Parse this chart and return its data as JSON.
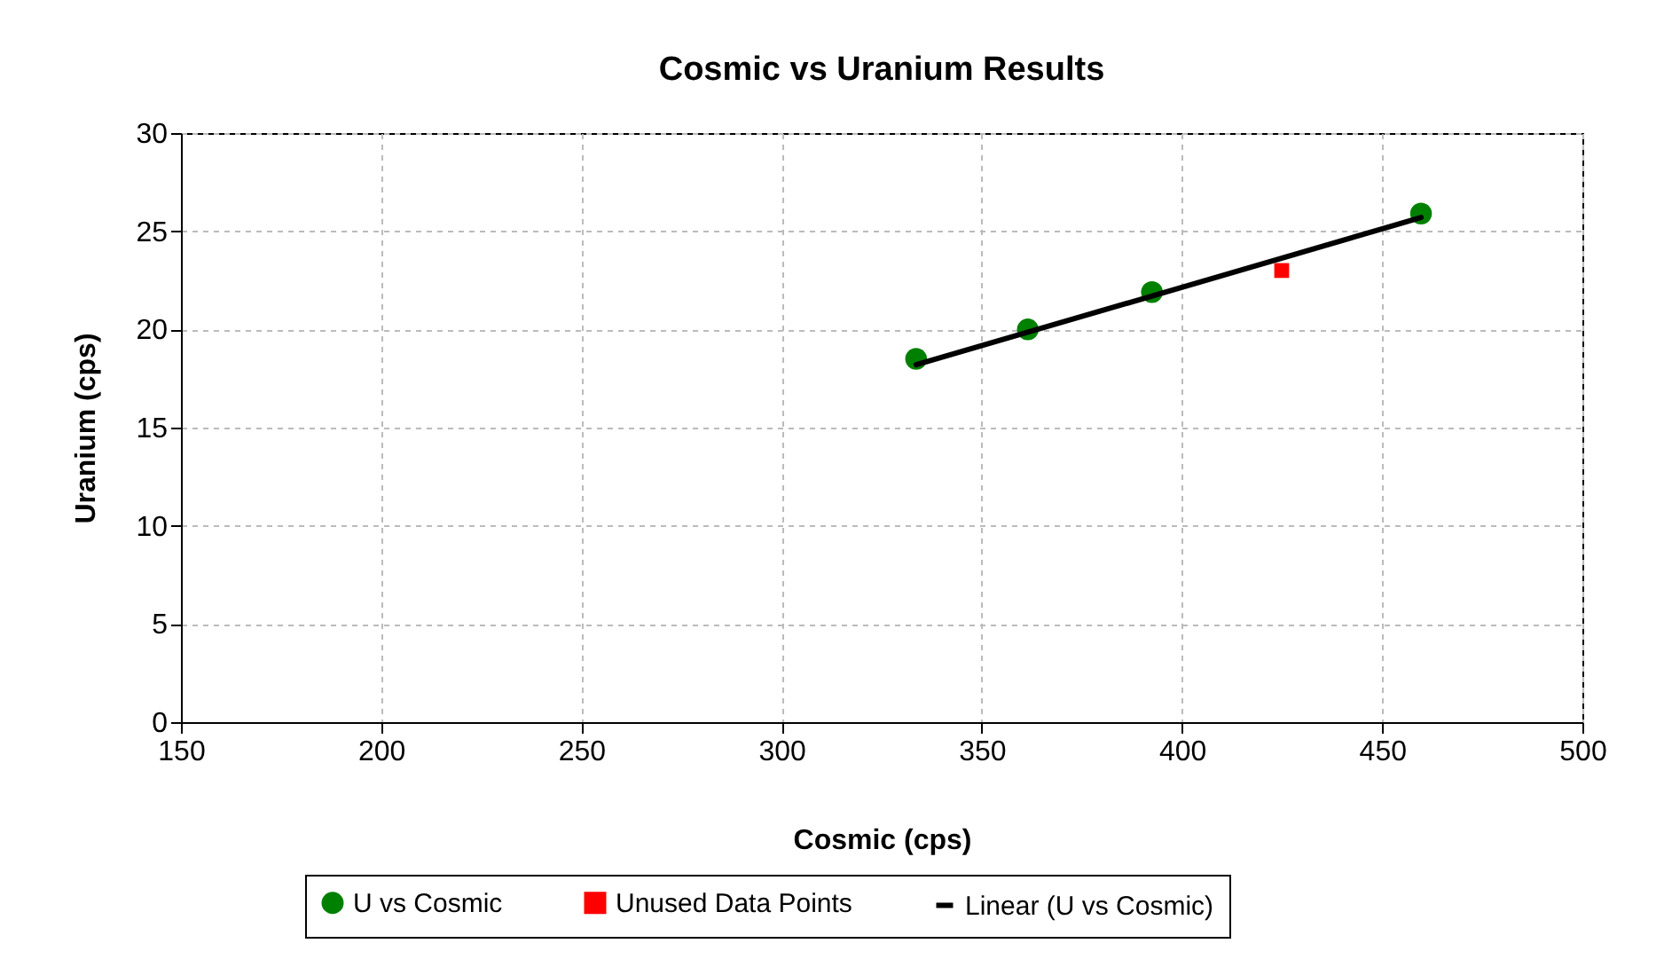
{
  "chart_data": {
    "type": "scatter",
    "title": "Cosmic vs Uranium Results",
    "xlabel": "Cosmic (cps)",
    "ylabel": "Uranium (cps)",
    "series": [
      {
        "name": "U vs Cosmic",
        "marker": "circle",
        "color": "#008000",
        "x": [
          333.6,
          361.5,
          392.5,
          459.7
        ],
        "values": [
          18.5,
          20.0,
          21.9,
          25.9
        ]
      },
      {
        "name": "Unused Data Points",
        "marker": "square",
        "color": "#ff0000",
        "x": [
          424.9
        ],
        "values": [
          23.0
        ]
      },
      {
        "name": "Linear (U vs Cosmic)",
        "type": "line",
        "line_style": "solid",
        "color": "#000000",
        "x": [
          333.6,
          459.7
        ],
        "values": [
          18.2,
          25.7
        ]
      }
    ],
    "xlim": [
      150,
      500
    ],
    "xticks": [
      150,
      200,
      250,
      300,
      350,
      400,
      450,
      500
    ],
    "ylim": [
      0,
      30
    ],
    "yticks": [
      0,
      5,
      10,
      15,
      20,
      25,
      30
    ],
    "grid": true,
    "legend": "bottom"
  }
}
